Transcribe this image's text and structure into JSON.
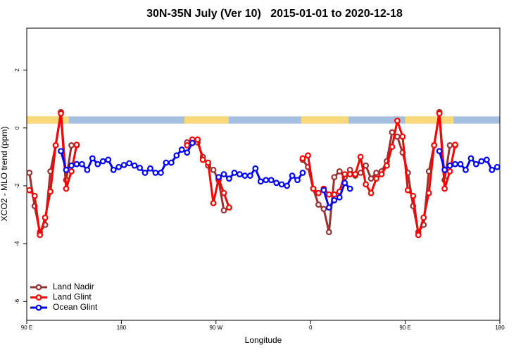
{
  "chart_data": {
    "type": "line",
    "title": "30N-35N July (Ver 10)   2015-01-01 to 2020-12-18",
    "x_label": "Longitude",
    "y_label": "XCO2 - MLO trend (ppm)",
    "xlim": [
      90,
      540
    ],
    "ylim": [
      -6.65,
      3.45
    ],
    "xticks": [
      {
        "value": 90,
        "label": "90 E"
      },
      180,
      {
        "value": 270,
        "label": "90 W"
      },
      {
        "value": 360,
        "label": "0"
      },
      {
        "value": 450,
        "label": "90 E"
      },
      {
        "value": 540,
        "label": "180"
      }
    ],
    "yticks": [
      -6,
      -4,
      -2,
      0,
      2
    ],
    "legend": "bottom-left",
    "land_mask": {
      "ylim": [
        0.15,
        0.4
      ],
      "land_color": "#fbd97a",
      "ocean_color": "#a7bfdf",
      "land_ranges": [
        [
          90,
          130
        ],
        [
          240,
          282
        ],
        [
          351,
          396
        ],
        [
          450,
          496
        ]
      ]
    },
    "x": [
      92.5,
      97.5,
      102.5,
      107.5,
      112.5,
      117.5,
      122.5,
      127.5,
      132.5,
      137.5,
      142.5,
      147.5,
      152.5,
      157.5,
      162.5,
      167.5,
      172.5,
      177.5,
      182.5,
      187.5,
      192.5,
      197.5,
      202.5,
      207.5,
      212.5,
      217.5,
      222.5,
      227.5,
      232.5,
      237.5,
      242.5,
      247.5,
      252.5,
      257.5,
      262.5,
      267.5,
      272.5,
      277.5,
      282.5,
      287.5,
      292.5,
      297.5,
      302.5,
      307.5,
      312.5,
      317.5,
      322.5,
      327.5,
      332.5,
      337.5,
      342.5,
      347.5,
      352.5,
      357.5,
      362.5,
      367.5,
      372.5,
      377.5,
      382.5,
      387.5,
      392.5,
      397.5,
      402.5,
      407.5,
      412.5,
      417.5,
      422.5,
      427.5,
      432.5,
      437.5,
      442.5,
      447.5,
      452.5,
      457.5,
      462.5,
      467.5,
      472.5,
      477.5,
      482.5,
      487.5,
      492.5,
      497.5,
      502.5,
      507.5,
      512.5,
      517.5,
      522.5,
      527.5,
      532.5,
      537.5
    ],
    "series": [
      {
        "name": "Land Nadir",
        "color": "#993333",
        "values": [
          -1.55,
          -2.7,
          -3.6,
          -3.35,
          -1.5,
          -0.6,
          0.55,
          -1.8,
          -0.6,
          -0.6,
          null,
          null,
          null,
          null,
          null,
          null,
          null,
          null,
          null,
          null,
          null,
          null,
          null,
          null,
          null,
          null,
          null,
          null,
          null,
          null,
          -0.5,
          -0.45,
          -0.5,
          -1.0,
          -1.3,
          -1.45,
          -1.8,
          -2.85,
          -2.75,
          null,
          null,
          null,
          null,
          null,
          null,
          null,
          null,
          null,
          null,
          null,
          null,
          null,
          -1.1,
          -1.35,
          -2.1,
          -2.65,
          -2.8,
          -3.6,
          -1.7,
          -1.5,
          -1.7,
          -1.45,
          -1.65,
          -1.55,
          -1.3,
          -1.75,
          -1.55,
          -1.5,
          -1.15,
          -0.15,
          -0.3,
          -0.85,
          -1.55,
          -2.7,
          -3.6,
          -3.35,
          -1.5,
          -0.6,
          0.55,
          -1.8,
          -0.6,
          -0.6,
          null,
          null,
          null,
          null,
          null,
          null,
          null,
          null
        ]
      },
      {
        "name": "Land Glint",
        "color": "#ff0000",
        "values": [
          -2.15,
          -2.35,
          -3.7,
          -3.1,
          -2.2,
          -0.6,
          0.5,
          -2.1,
          -1.5,
          -0.58,
          null,
          null,
          null,
          null,
          null,
          null,
          null,
          null,
          null,
          null,
          null,
          null,
          null,
          null,
          null,
          null,
          null,
          null,
          null,
          null,
          -0.6,
          -0.4,
          -0.4,
          -1.1,
          -1.2,
          -2.6,
          -1.75,
          -2.25,
          -2.75,
          null,
          null,
          null,
          null,
          null,
          null,
          null,
          null,
          null,
          null,
          null,
          null,
          null,
          -1.05,
          -0.95,
          -2.1,
          -2.25,
          -2.1,
          -2.3,
          -2.3,
          -2.2,
          -1.6,
          -1.6,
          -1.6,
          -1.0,
          -1.95,
          -2.25,
          -1.75,
          -1.6,
          -1.3,
          -0.65,
          0.25,
          -0.3,
          -2.15,
          -2.35,
          -3.7,
          -3.1,
          -2.25,
          -0.6,
          0.5,
          -2.1,
          -1.5,
          -0.58,
          null,
          null,
          null,
          null,
          null,
          null,
          null,
          null
        ]
      },
      {
        "name": "Ocean Glint",
        "color": "#0000ff",
        "values": [
          null,
          null,
          null,
          null,
          null,
          null,
          -0.8,
          -1.45,
          -1.3,
          -1.25,
          -1.25,
          -1.45,
          -1.05,
          -1.25,
          -1.15,
          -1.1,
          -1.45,
          -1.35,
          -1.28,
          -1.22,
          -1.3,
          -1.38,
          -1.55,
          -1.4,
          -1.55,
          -1.55,
          -1.2,
          -1.2,
          -0.95,
          -0.75,
          -0.85,
          -0.52,
          null,
          null,
          null,
          null,
          -1.7,
          -1.6,
          -1.75,
          -1.55,
          -1.6,
          -1.65,
          -1.65,
          -1.4,
          -1.85,
          -1.8,
          -1.8,
          -1.9,
          -1.95,
          -2.0,
          -1.65,
          -1.8,
          -1.55,
          null,
          null,
          null,
          -2.15,
          -2.75,
          -2.5,
          -2.4,
          -1.9,
          -2.1,
          null,
          null,
          null,
          null,
          null,
          null,
          null,
          null,
          null,
          null,
          null,
          null,
          null,
          null,
          null,
          null,
          -0.8,
          -1.45,
          -1.3,
          -1.25,
          -1.25,
          -1.45,
          -1.05,
          -1.25,
          -1.15,
          -1.1,
          -1.45,
          -1.35
        ]
      }
    ]
  }
}
